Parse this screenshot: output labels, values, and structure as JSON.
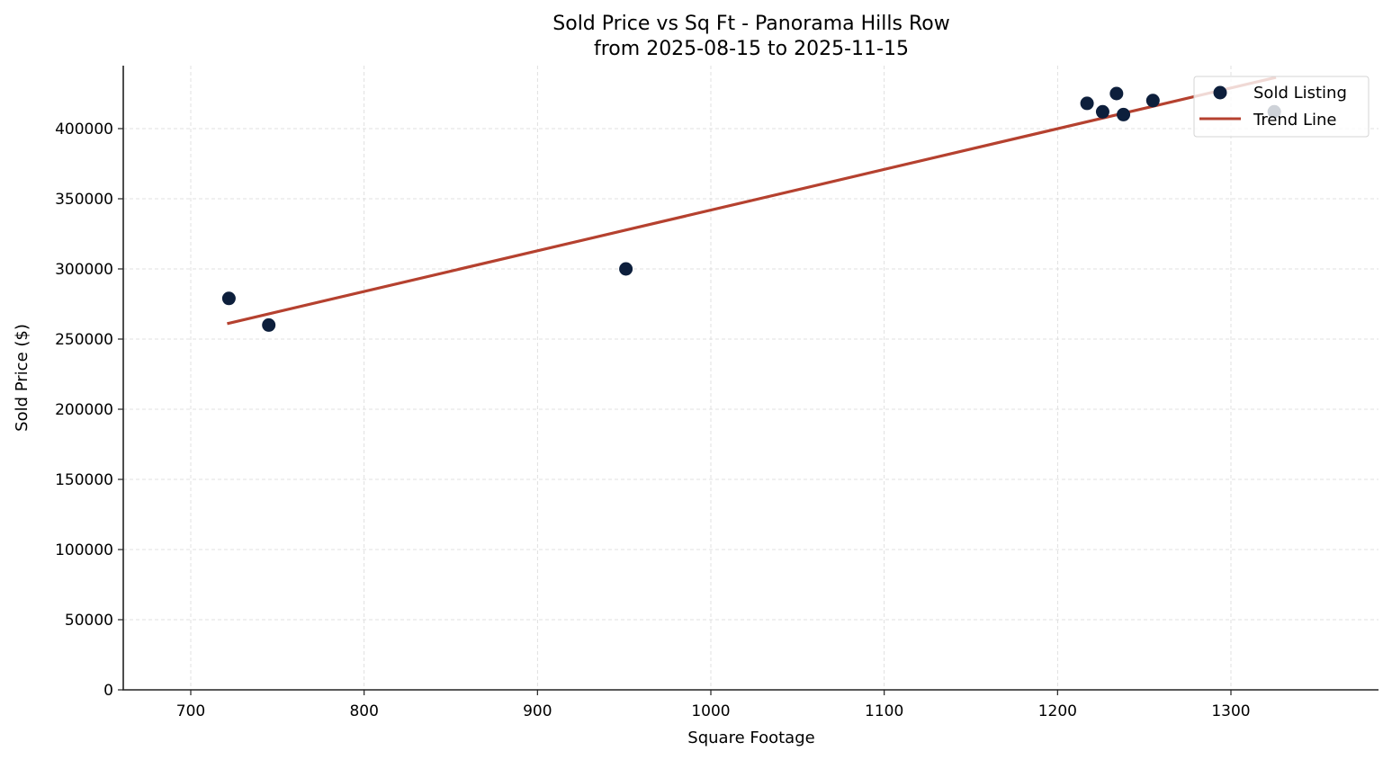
{
  "chart_data": {
    "type": "scatter",
    "title": "Sold Price vs Sq Ft - Panorama Hills Row",
    "subtitle": "from 2025-08-15 to 2025-11-15",
    "xlabel": "Square Footage",
    "ylabel": "Sold Price ($)",
    "xlim": [
      661,
      1384
    ],
    "ylim": [
      0,
      444000
    ],
    "xticks": [
      700,
      800,
      900,
      1000,
      1100,
      1200,
      1300
    ],
    "xtick_labels": [
      "700",
      "800",
      "900",
      "1000",
      "1100",
      "1200",
      "1300"
    ],
    "yticks": [
      0,
      50000,
      100000,
      150000,
      200000,
      250000,
      300000,
      350000,
      400000
    ],
    "ytick_labels": [
      "0",
      "50000",
      "100000",
      "150000",
      "200000",
      "250000",
      "300000",
      "350000",
      "400000"
    ],
    "grid": true,
    "legend_position": "upper right",
    "series": [
      {
        "name": "Sold Listing",
        "kind": "scatter",
        "color": "#0d1f3c",
        "points": [
          {
            "x": 722,
            "y": 279000
          },
          {
            "x": 745,
            "y": 260000
          },
          {
            "x": 951,
            "y": 300000
          },
          {
            "x": 1217,
            "y": 418000
          },
          {
            "x": 1226,
            "y": 412000
          },
          {
            "x": 1234,
            "y": 425000
          },
          {
            "x": 1238,
            "y": 410000
          },
          {
            "x": 1255,
            "y": 420000
          },
          {
            "x": 1325,
            "y": 412000
          }
        ]
      },
      {
        "name": "Trend Line",
        "kind": "line",
        "color": "#b5412f",
        "points": [
          {
            "x": 721,
            "y": 261000
          },
          {
            "x": 1326,
            "y": 436500
          }
        ]
      }
    ]
  },
  "legend": {
    "items": [
      "Sold Listing",
      "Trend Line"
    ]
  }
}
